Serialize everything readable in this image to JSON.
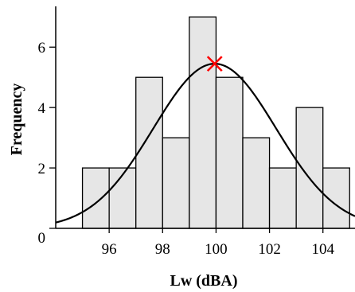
{
  "chart_data": {
    "type": "histogram",
    "xlabel": "Lw (dBA)",
    "ylabel": "Frequency",
    "xlim": [
      94,
      105.2
    ],
    "ylim": [
      0,
      7.35
    ],
    "x_ticks": [
      96,
      98,
      100,
      102,
      104
    ],
    "y_ticks": [
      0,
      2,
      4,
      6
    ],
    "bin_width": 1,
    "bins": [
      {
        "start": 95,
        "end": 96,
        "count": 2
      },
      {
        "start": 96,
        "end": 97,
        "count": 2
      },
      {
        "start": 97,
        "end": 98,
        "count": 5
      },
      {
        "start": 98,
        "end": 99,
        "count": 3
      },
      {
        "start": 99,
        "end": 100,
        "count": 7
      },
      {
        "start": 100,
        "end": 101,
        "count": 5
      },
      {
        "start": 101,
        "end": 102,
        "count": 3
      },
      {
        "start": 102,
        "end": 103,
        "count": 2
      },
      {
        "start": 103,
        "end": 104,
        "count": 4
      },
      {
        "start": 104,
        "end": 105,
        "count": 2
      }
    ],
    "normal_fit": {
      "mean": 99.95,
      "sd": 2.3,
      "peak": 5.45
    },
    "marker": {
      "x": 99.95,
      "y": 5.45,
      "symbol": "x",
      "color": "#ff0000"
    },
    "colors": {
      "bar_fill": "#e6e6e6",
      "bar_stroke": "#000000",
      "curve": "#000000"
    }
  }
}
